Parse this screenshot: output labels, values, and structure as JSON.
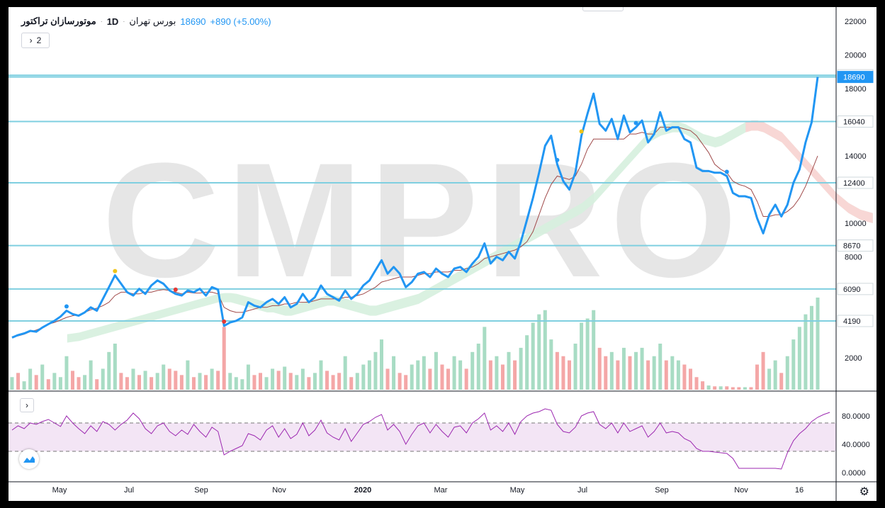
{
  "legend": {
    "symbol": "موتورسازان تراکتور",
    "timeframe": "1D",
    "exchange": "بورس تهران",
    "last": "18690",
    "change": "+890 (+5.00%)",
    "collapse_count": "2"
  },
  "watermark": "CMPRO",
  "colors": {
    "price": "#2196f3",
    "hline": "#7fcfe0",
    "kijun": "#a04a4a",
    "rsi": "#9c27b0",
    "vol_up": "#a8dcc4",
    "vol_down": "#f4a7a7",
    "cloud_up": "#d6f0de",
    "cloud_down": "#fbd4d4"
  },
  "chart_data": {
    "type": "line",
    "x_labels": [
      "May",
      "Jul",
      "Sep",
      "Nov",
      "2020",
      "Mar",
      "May",
      "Jul",
      "Sep",
      "Nov",
      "16"
    ],
    "price": [
      3200,
      3350,
      3450,
      3600,
      3550,
      3800,
      4000,
      4200,
      4450,
      4800,
      4600,
      4500,
      4700,
      5000,
      4800,
      5500,
      6200,
      6900,
      6400,
      5900,
      5700,
      6100,
      5800,
      6300,
      6600,
      6400,
      6000,
      5800,
      5700,
      6000,
      5900,
      6100,
      5700,
      6200,
      6050,
      3900,
      4100,
      4200,
      4400,
      5300,
      5100,
      5000,
      5300,
      5500,
      5200,
      5600,
      5000,
      5200,
      5800,
      5300,
      5600,
      6300,
      5800,
      5600,
      5400,
      6000,
      5500,
      5800,
      6300,
      6600,
      7200,
      7800,
      7000,
      7400,
      7000,
      6200,
      6500,
      7000,
      7100,
      6800,
      7300,
      7000,
      6800,
      7300,
      7400,
      7100,
      7600,
      8000,
      8800,
      7600,
      8000,
      7800,
      8300,
      7900,
      8900,
      10200,
      11500,
      13000,
      14600,
      15200,
      13500,
      12500,
      12000,
      13000,
      15200,
      16500,
      17700,
      15900,
      15500,
      16200,
      15000,
      16400,
      15400,
      15700,
      16100,
      14800,
      15300,
      16600,
      15500,
      15700,
      15700,
      15000,
      14800,
      13300,
      13100,
      13100,
      13000,
      13000,
      12800,
      11800,
      11600,
      11600,
      11500,
      10300,
      9400,
      10500,
      11100,
      10400,
      11100,
      12400,
      13200,
      14800,
      16000,
      18690
    ],
    "price_markers": [
      {
        "i": 9,
        "color": "#2196f3"
      },
      {
        "i": 17,
        "color": "#f0c419"
      },
      {
        "i": 27,
        "color": "#e53935"
      },
      {
        "i": 35,
        "color": "#e53935"
      },
      {
        "i": 90,
        "color": "#2196f3"
      },
      {
        "i": 94,
        "color": "#f0c419"
      },
      {
        "i": 103,
        "color": "#2196f3"
      },
      {
        "i": 118,
        "color": "#2196f3"
      }
    ],
    "kijun": [
      3250,
      3300,
      3400,
      3550,
      3650,
      3800,
      4000,
      4100,
      4250,
      4400,
      4500,
      4550,
      4700,
      4850,
      4950,
      5100,
      5300,
      5700,
      5900,
      5900,
      5800,
      5800,
      5900,
      5900,
      6000,
      6050,
      6000,
      5900,
      5800,
      5900,
      5850,
      5850,
      5900,
      5900,
      5800,
      5000,
      4800,
      4700,
      4700,
      4800,
      4900,
      5000,
      5000,
      5100,
      5100,
      5200,
      5200,
      5300,
      5300,
      5300,
      5400,
      5500,
      5500,
      5500,
      5500,
      5600,
      5600,
      5700,
      5800,
      6000,
      6200,
      6500,
      6600,
      6700,
      6800,
      6800,
      6800,
      6900,
      7000,
      7000,
      7100,
      7100,
      7100,
      7200,
      7200,
      7300,
      7400,
      7600,
      7900,
      8000,
      8100,
      8200,
      8300,
      8400,
      8600,
      8900,
      9500,
      10500,
      11500,
      12300,
      12800,
      12700,
      12600,
      12800,
      13500,
      14400,
      15000,
      15000,
      15000,
      15000,
      15000,
      15000,
      15300,
      15300,
      15400,
      15300,
      15300,
      15700,
      15700,
      15700,
      15700,
      15600,
      15500,
      15200,
      14700,
      14200,
      13500,
      13200,
      13000,
      12500,
      12300,
      12200,
      12000,
      11300,
      10400,
      10400,
      10500,
      10500,
      10700,
      11000,
      11500,
      12200,
      13100,
      14000
    ],
    "cloud_upper": [
      3400,
      3450,
      3500,
      3600,
      3700,
      3800,
      3900,
      4000,
      4100,
      4200,
      4300,
      4400,
      4500,
      4600,
      4700,
      4800,
      4900,
      5000,
      5100,
      5200,
      5300,
      5400,
      5500,
      5600,
      5700,
      5800,
      5850,
      5850,
      5800,
      5700,
      5600,
      5500,
      5400,
      5300,
      5300,
      5200,
      5100,
      5100,
      5200,
      5300,
      5400,
      5500,
      5600,
      5700,
      5700,
      5600,
      5500,
      5400,
      5300,
      5200,
      5100,
      5100,
      5200,
      5300,
      5400,
      5500,
      5600,
      5700,
      5800,
      6000,
      6200,
      6400,
      6600,
      6800,
      7000,
      7200,
      7400,
      7600,
      7800,
      8000,
      8200,
      8400,
      8600,
      8800,
      9000,
      9200,
      9400,
      9600,
      9800,
      10000,
      10200,
      10400,
      10600,
      10800,
      11000,
      11200,
      11500,
      11800,
      12200,
      12600,
      13000,
      13400,
      13800,
      14200,
      14600,
      15000,
      15400,
      15600,
      15800,
      15900,
      16000,
      16000,
      15900,
      15700,
      15500,
      15300,
      15200,
      15100,
      15200,
      15400,
      15600,
      15800,
      16000,
      16100,
      16100,
      16000,
      15800,
      15600,
      15400,
      15000,
      14600,
      14200,
      13800,
      13400,
      13000,
      12600,
      12200,
      11800,
      11500,
      11200,
      11000,
      10800,
      10700,
      10600
    ],
    "cloud_lower": [
      2900,
      2950,
      3000,
      3100,
      3200,
      3300,
      3400,
      3500,
      3600,
      3700,
      3800,
      3900,
      4000,
      4100,
      4200,
      4300,
      4400,
      4500,
      4600,
      4700,
      4800,
      4900,
      5000,
      5100,
      5200,
      5300,
      5300,
      5300,
      5200,
      5100,
      5000,
      4900,
      4800,
      4700,
      4700,
      4600,
      4500,
      4500,
      4600,
      4700,
      4800,
      4900,
      5000,
      5100,
      5100,
      5000,
      4900,
      4800,
      4700,
      4600,
      4500,
      4500,
      4600,
      4700,
      4800,
      4900,
      5000,
      5100,
      5200,
      5400,
      5600,
      5800,
      6000,
      6200,
      6400,
      6600,
      6800,
      7000,
      7200,
      7400,
      7600,
      7800,
      8000,
      8200,
      8400,
      8600,
      8800,
      9000,
      9200,
      9400,
      9600,
      9800,
      10000,
      10200,
      10400,
      10600,
      10900,
      11200,
      11600,
      12000,
      12400,
      12800,
      13200,
      13600,
      14000,
      14400,
      14800,
      15000,
      15200,
      15300,
      15400,
      15400,
      15300,
      15100,
      14900,
      14700,
      14600,
      14500,
      14600,
      14800,
      15000,
      15200,
      15400,
      15500,
      15500,
      15400,
      15200,
      15000,
      14800,
      14400,
      14000,
      13600,
      13200,
      12800,
      12400,
      12000,
      11600,
      11200,
      10900,
      10600,
      10400,
      10200,
      10100,
      10000
    ],
    "rsi": [
      60,
      66,
      62,
      70,
      68,
      72,
      75,
      70,
      65,
      80,
      70,
      62,
      55,
      66,
      58,
      72,
      68,
      60,
      68,
      74,
      84,
      76,
      62,
      55,
      66,
      70,
      58,
      52,
      60,
      54,
      68,
      58,
      50,
      64,
      58,
      25,
      30,
      34,
      38,
      55,
      52,
      46,
      60,
      66,
      50,
      62,
      48,
      54,
      70,
      52,
      60,
      74,
      56,
      50,
      46,
      62,
      44,
      56,
      68,
      72,
      78,
      82,
      60,
      68,
      58,
      40,
      54,
      66,
      70,
      56,
      68,
      58,
      50,
      64,
      66,
      56,
      70,
      76,
      84,
      60,
      66,
      58,
      70,
      54,
      72,
      80,
      84,
      86,
      90,
      88,
      68,
      58,
      56,
      64,
      80,
      84,
      86,
      68,
      62,
      70,
      56,
      70,
      58,
      62,
      66,
      50,
      58,
      70,
      56,
      58,
      56,
      48,
      44,
      34,
      30,
      30,
      29,
      28,
      27,
      20,
      6,
      6,
      6,
      6,
      6,
      6,
      6,
      5,
      28,
      45,
      55,
      62,
      72,
      78,
      82,
      85
    ],
    "volume": [
      300,
      400,
      200,
      500,
      350,
      600,
      250,
      400,
      300,
      800,
      450,
      300,
      350,
      700,
      250,
      500,
      900,
      1100,
      400,
      300,
      500,
      350,
      450,
      300,
      400,
      600,
      500,
      450,
      350,
      700,
      300,
      400,
      350,
      500,
      450,
      1500,
      400,
      300,
      250,
      600,
      350,
      400,
      300,
      500,
      450,
      550,
      400,
      350,
      500,
      300,
      400,
      700,
      450,
      350,
      400,
      800,
      300,
      400,
      600,
      700,
      900,
      1200,
      500,
      800,
      400,
      350,
      600,
      700,
      800,
      500,
      900,
      600,
      500,
      800,
      700,
      500,
      900,
      1100,
      1500,
      700,
      800,
      600,
      900,
      700,
      1000,
      1300,
      1600,
      1800,
      1900,
      1200,
      900,
      800,
      700,
      1100,
      1600,
      1700,
      1900,
      1000,
      800,
      900,
      700,
      1000,
      800,
      900,
      1000,
      700,
      800,
      1100,
      700,
      800,
      700,
      600,
      500,
      300,
      200,
      100,
      80,
      80,
      80,
      60,
      60,
      60,
      60,
      600,
      900,
      500,
      700,
      400,
      800,
      1200,
      1500,
      1800,
      2000,
      2200
    ],
    "volume_up": [
      1,
      0,
      1,
      1,
      0,
      1,
      0,
      1,
      1,
      1,
      0,
      0,
      1,
      1,
      0,
      1,
      1,
      1,
      0,
      0,
      1,
      0,
      1,
      0,
      1,
      1,
      0,
      0,
      0,
      1,
      0,
      1,
      0,
      1,
      0,
      0,
      1,
      1,
      1,
      1,
      0,
      0,
      1,
      1,
      0,
      1,
      0,
      1,
      1,
      0,
      1,
      1,
      0,
      0,
      0,
      1,
      0,
      1,
      1,
      1,
      1,
      1,
      0,
      1,
      0,
      0,
      1,
      1,
      1,
      0,
      1,
      0,
      0,
      1,
      1,
      0,
      1,
      1,
      1,
      0,
      1,
      0,
      1,
      0,
      1,
      1,
      1,
      1,
      1,
      1,
      0,
      0,
      0,
      1,
      1,
      1,
      1,
      0,
      0,
      1,
      0,
      1,
      0,
      1,
      1,
      0,
      1,
      1,
      0,
      1,
      1,
      0,
      0,
      0,
      0,
      1,
      0,
      1,
      0,
      0,
      0,
      1,
      0,
      0,
      0,
      1,
      1,
      0,
      1,
      1,
      1,
      1,
      1,
      1
    ],
    "price_ticks": [
      "22000",
      "20000",
      "18000",
      "14000",
      "10000",
      "8000",
      "2000"
    ],
    "hlines": [
      "18790",
      "18690",
      "16040",
      "12400",
      "8670",
      "6090",
      "4190"
    ],
    "rsi_ticks": [
      "80.0000",
      "40.0000",
      "0.0000"
    ],
    "rsi_band": [
      30,
      70
    ],
    "y_axis": "right"
  }
}
